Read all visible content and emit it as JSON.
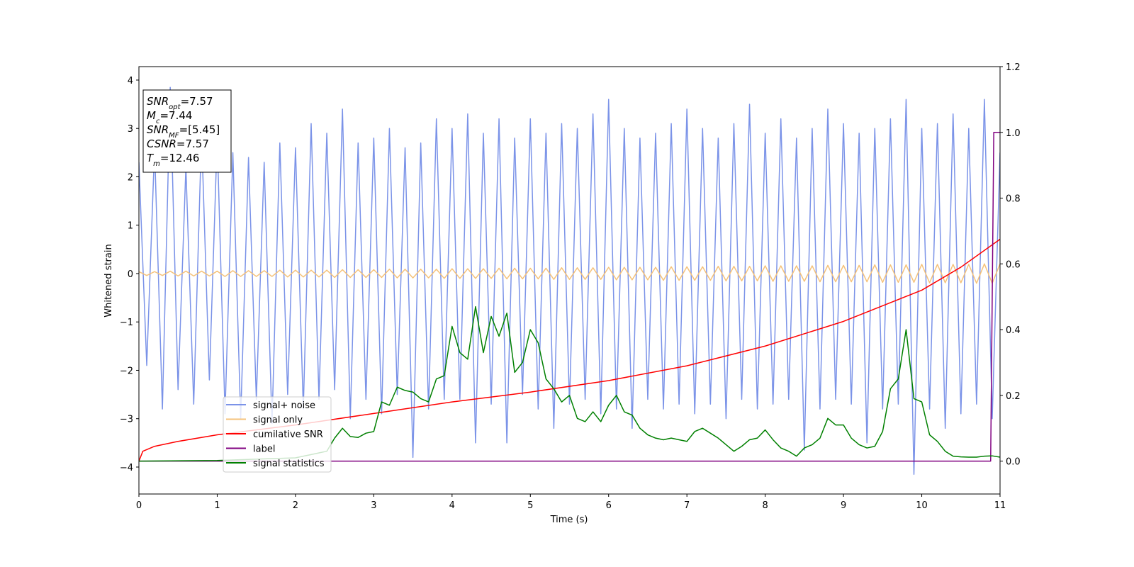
{
  "chart_data": {
    "type": "line",
    "xlabel": "Time (s)",
    "ylabel": "Whitened strain",
    "xlim": [
      0,
      11
    ],
    "xticks": [
      0,
      1,
      2,
      3,
      4,
      5,
      6,
      7,
      8,
      9,
      10,
      11
    ],
    "ylim": [
      -4.557,
      4.278
    ],
    "yticks": [
      {
        "value": -4,
        "label": "−4"
      },
      {
        "value": -3,
        "label": "−3"
      },
      {
        "value": -2,
        "label": "−2"
      },
      {
        "value": -1,
        "label": "−1"
      },
      0,
      1,
      2,
      3,
      4
    ],
    "y2lim": [
      -0.1,
      1.2
    ],
    "y2ticks": [
      {
        "value": 0,
        "label": "0.0"
      },
      0.2,
      0.4,
      0.6,
      0.8,
      {
        "value": 1,
        "label": "1.0"
      },
      1.2
    ],
    "legend_loc": "lower left",
    "annotations": [
      {
        "main": "SNR",
        "sub": "opt",
        "rest": "=7.57"
      },
      {
        "main": "M",
        "sub": "c",
        "rest": "=7.44"
      },
      {
        "main": "SNR",
        "sub": "MF",
        "rest": "=[5.45]"
      },
      {
        "main": "CSNR",
        "rest": "=7.57"
      },
      {
        "main": "T",
        "sub": "m",
        "rest": "=12.46"
      }
    ],
    "x": [
      0,
      0.1,
      0.2,
      0.3,
      0.4,
      0.5,
      0.6,
      0.7,
      0.8,
      0.9,
      1,
      1.1,
      1.2,
      1.3,
      1.4,
      1.5,
      1.6,
      1.7,
      1.8,
      1.9,
      2,
      2.1,
      2.2,
      2.3,
      2.4,
      2.5,
      2.6,
      2.7,
      2.8,
      2.9,
      3,
      3.1,
      3.2,
      3.3,
      3.4,
      3.5,
      3.6,
      3.7,
      3.8,
      3.9,
      4,
      4.1,
      4.2,
      4.3,
      4.4,
      4.5,
      4.6,
      4.7,
      4.8,
      4.9,
      5,
      5.1,
      5.2,
      5.3,
      5.4,
      5.5,
      5.6,
      5.7,
      5.8,
      5.9,
      6,
      6.1,
      6.2,
      6.3,
      6.4,
      6.5,
      6.6,
      6.7,
      6.8,
      6.9,
      7,
      7.1,
      7.2,
      7.3,
      7.4,
      7.5,
      7.6,
      7.7,
      7.8,
      7.9,
      8,
      8.1,
      8.2,
      8.3,
      8.4,
      8.5,
      8.6,
      8.7,
      8.8,
      8.9,
      9,
      9.1,
      9.2,
      9.3,
      9.4,
      9.5,
      9.6,
      9.7,
      9.8,
      9.9,
      10,
      10.1,
      10.2,
      10.3,
      10.4,
      10.5,
      10.6,
      10.7,
      10.8,
      10.9,
      11
    ],
    "series": [
      {
        "name": "signal+ noise",
        "color": "#7b93e8",
        "values": [
          2.3,
          -1.9,
          2.6,
          -2.8,
          3.85,
          -2.4,
          2.2,
          -2.7,
          2.9,
          -2.2,
          2.8,
          -2.9,
          2.5,
          -3.0,
          2.4,
          -2.6,
          2.3,
          -3.1,
          2.7,
          -2.5,
          2.6,
          -2.8,
          3.1,
          -2.6,
          2.9,
          -2.4,
          3.4,
          -3.0,
          2.7,
          -2.6,
          2.8,
          -2.9,
          3.0,
          -2.5,
          2.6,
          -3.8,
          2.7,
          -2.8,
          3.2,
          -2.6,
          3.0,
          -2.6,
          3.3,
          -3.5,
          2.9,
          -2.7,
          3.2,
          -3.5,
          2.8,
          -2.5,
          3.2,
          -2.8,
          2.9,
          -3.2,
          3.1,
          -2.7,
          3.0,
          -2.6,
          3.3,
          -2.9,
          3.6,
          -2.8,
          3.0,
          -3.2,
          2.8,
          -2.6,
          2.9,
          -2.8,
          3.1,
          -2.7,
          3.4,
          -2.9,
          3.0,
          -2.7,
          2.8,
          -3.0,
          3.1,
          -2.6,
          3.5,
          -2.8,
          2.9,
          -2.7,
          3.2,
          -2.6,
          2.8,
          -3.65,
          3.0,
          -2.8,
          3.4,
          -2.6,
          3.1,
          -2.7,
          2.9,
          -3.5,
          3.0,
          -2.8,
          3.2,
          -2.7,
          3.6,
          -4.15,
          3.0,
          -2.8,
          3.1,
          -3.2,
          3.3,
          -2.9,
          3.0,
          -2.7,
          3.6,
          -3.0,
          2.5
        ]
      },
      {
        "name": "signal only",
        "color": "#f5c27a",
        "values": [
          0.04,
          -0.04,
          0.04,
          -0.04,
          0.05,
          -0.05,
          0.05,
          -0.05,
          0.05,
          -0.05,
          0.05,
          -0.06,
          0.06,
          -0.06,
          0.06,
          -0.06,
          0.06,
          -0.06,
          0.07,
          -0.07,
          0.07,
          -0.07,
          0.07,
          -0.07,
          0.07,
          -0.08,
          0.08,
          -0.08,
          0.08,
          -0.08,
          0.08,
          -0.08,
          0.09,
          -0.09,
          0.09,
          -0.09,
          0.09,
          -0.09,
          0.09,
          -0.1,
          0.1,
          -0.1,
          0.1,
          -0.1,
          0.1,
          -0.1,
          0.11,
          -0.11,
          0.11,
          -0.11,
          0.11,
          -0.11,
          0.11,
          -0.12,
          0.12,
          -0.12,
          0.12,
          -0.12,
          0.12,
          -0.12,
          0.13,
          -0.13,
          0.13,
          -0.13,
          0.13,
          -0.13,
          0.13,
          -0.14,
          0.14,
          -0.14,
          0.14,
          -0.14,
          0.14,
          -0.14,
          0.15,
          -0.15,
          0.15,
          -0.15,
          0.15,
          -0.15,
          0.16,
          -0.16,
          0.16,
          -0.16,
          0.16,
          -0.16,
          0.16,
          -0.17,
          0.17,
          -0.17,
          0.17,
          -0.17,
          0.17,
          -0.17,
          0.18,
          -0.18,
          0.18,
          -0.18,
          0.18,
          -0.18,
          0.19,
          -0.19,
          0.19,
          -0.19,
          0.19,
          -0.19,
          0.19,
          -0.2,
          0.2,
          -0.2,
          0.2
        ]
      },
      {
        "name": "cumilative SNR",
        "color": "#ff0000",
        "axis": "y2",
        "x": [
          0,
          0.05,
          0.2,
          0.5,
          1,
          2,
          3,
          4,
          5,
          6,
          7,
          8,
          9,
          10,
          10.5,
          11
        ],
        "values": [
          0.0,
          0.03,
          0.045,
          0.06,
          0.08,
          0.11,
          0.145,
          0.18,
          0.21,
          0.245,
          0.29,
          0.35,
          0.425,
          0.52,
          0.59,
          0.675
        ]
      },
      {
        "name": "label",
        "color": "#800080",
        "axis": "y2",
        "x": [
          0,
          10.88,
          10.92,
          11
        ],
        "values": [
          0,
          0,
          1,
          1
        ]
      },
      {
        "name": "signal statistics",
        "color": "#008000",
        "axis": "y2",
        "x": [
          0,
          1,
          2,
          2.1,
          2.2,
          2.3,
          2.4,
          2.5,
          2.6,
          2.7,
          2.8,
          2.9,
          3,
          3.1,
          3.2,
          3.3,
          3.4,
          3.5,
          3.6,
          3.7,
          3.8,
          3.9,
          4,
          4.1,
          4.2,
          4.3,
          4.4,
          4.5,
          4.6,
          4.7,
          4.8,
          4.9,
          5,
          5.1,
          5.2,
          5.3,
          5.4,
          5.5,
          5.6,
          5.7,
          5.8,
          5.9,
          6,
          6.1,
          6.2,
          6.3,
          6.4,
          6.5,
          6.6,
          6.7,
          6.8,
          6.9,
          7,
          7.1,
          7.2,
          7.3,
          7.4,
          7.5,
          7.6,
          7.7,
          7.8,
          7.9,
          8,
          8.1,
          8.2,
          8.3,
          8.4,
          8.5,
          8.6,
          8.7,
          8.8,
          8.9,
          9,
          9.1,
          9.2,
          9.3,
          9.4,
          9.5,
          9.6,
          9.7,
          9.8,
          9.9,
          10,
          10.1,
          10.2,
          10.3,
          10.4,
          10.5,
          10.6,
          10.7,
          10.8,
          10.9,
          11
        ],
        "values": [
          0.0,
          0.002,
          0.01,
          0.015,
          0.02,
          0.025,
          0.03,
          0.07,
          0.1,
          0.075,
          0.072,
          0.085,
          0.09,
          0.18,
          0.17,
          0.225,
          0.215,
          0.21,
          0.19,
          0.18,
          0.25,
          0.26,
          0.41,
          0.33,
          0.31,
          0.47,
          0.33,
          0.44,
          0.38,
          0.45,
          0.27,
          0.3,
          0.4,
          0.36,
          0.25,
          0.22,
          0.18,
          0.2,
          0.13,
          0.12,
          0.15,
          0.12,
          0.17,
          0.2,
          0.15,
          0.14,
          0.1,
          0.08,
          0.07,
          0.065,
          0.07,
          0.065,
          0.06,
          0.09,
          0.1,
          0.085,
          0.07,
          0.05,
          0.03,
          0.045,
          0.065,
          0.07,
          0.095,
          0.065,
          0.04,
          0.03,
          0.015,
          0.04,
          0.05,
          0.07,
          0.13,
          0.11,
          0.11,
          0.07,
          0.05,
          0.04,
          0.045,
          0.09,
          0.22,
          0.25,
          0.4,
          0.19,
          0.18,
          0.08,
          0.06,
          0.03,
          0.015,
          0.013,
          0.012,
          0.012,
          0.015,
          0.016,
          0.012
        ]
      }
    ]
  }
}
